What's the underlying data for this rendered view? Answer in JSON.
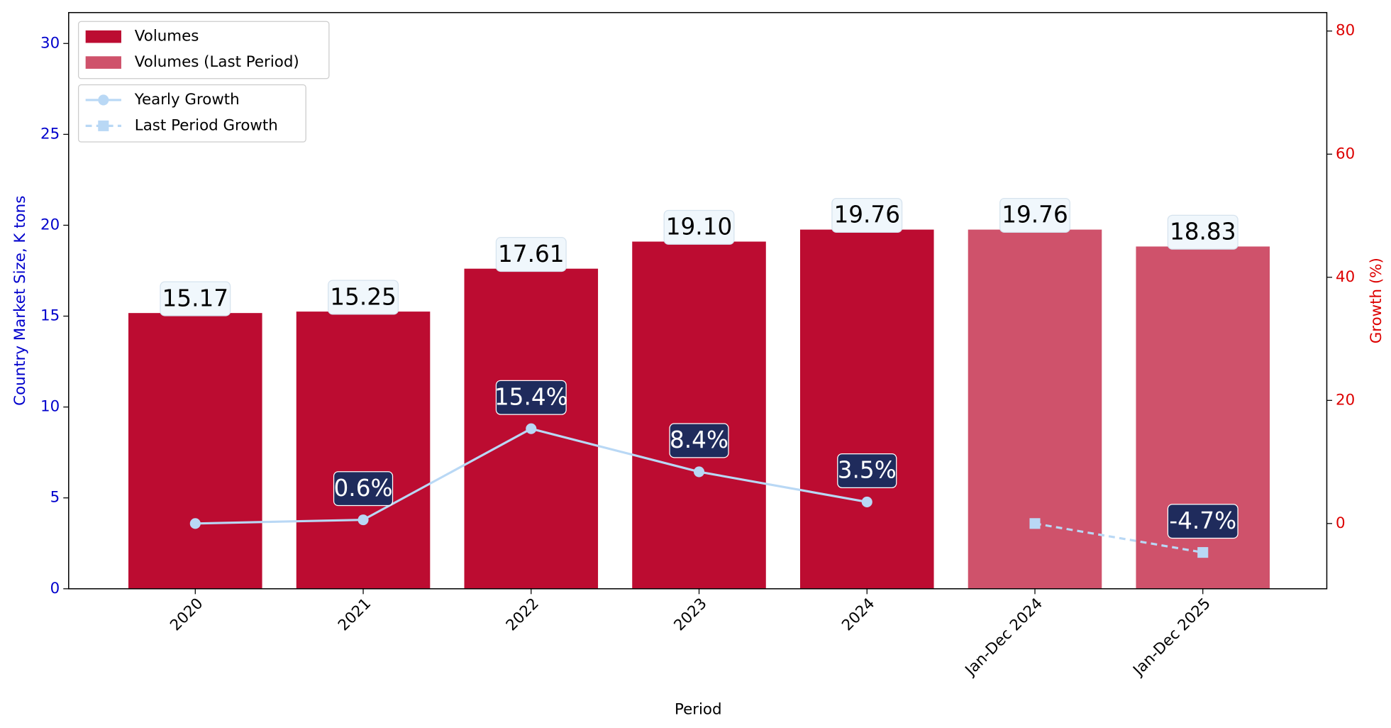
{
  "chart_data": {
    "type": "bar",
    "x_label": "Period",
    "y_label": "Country Market Size, K tons",
    "y2_label": "Growth (%)",
    "categories": [
      "2020",
      "2021",
      "2022",
      "2023",
      "2024",
      "Jan-Dec 2024",
      "Jan-Dec 2025"
    ],
    "series": [
      {
        "name": "Volumes",
        "color": "#bc0c31",
        "type": "bar",
        "values": [
          15.17,
          15.25,
          17.61,
          19.1,
          19.76,
          null,
          null
        ],
        "value_labels": [
          "15.17",
          "15.25",
          "17.61",
          "19.10",
          "19.76",
          null,
          null
        ]
      },
      {
        "name": "Volumes (Last Period)",
        "color": "#cf526b",
        "type": "bar",
        "values": [
          null,
          null,
          null,
          null,
          null,
          19.76,
          18.83
        ],
        "value_labels": [
          null,
          null,
          null,
          null,
          null,
          "19.76",
          "18.83"
        ]
      },
      {
        "name": "Yearly Growth",
        "color": "#b9d8f5",
        "type": "line",
        "axis": "y2",
        "marker": "circle",
        "dash": false,
        "values": [
          0,
          0.6,
          15.4,
          8.4,
          3.5,
          null,
          null
        ],
        "value_labels": [
          null,
          "0.6%",
          "15.4%",
          "8.4%",
          "3.5%",
          null,
          null
        ]
      },
      {
        "name": "Last Period Growth",
        "color": "#b9d8f5",
        "type": "line",
        "axis": "y2",
        "marker": "square",
        "dash": true,
        "values": [
          null,
          null,
          null,
          null,
          null,
          0,
          -4.7
        ],
        "value_labels": [
          null,
          null,
          null,
          null,
          null,
          null,
          "-4.7%"
        ]
      }
    ],
    "ylim": [
      0,
      31.7
    ],
    "yticks": [
      0,
      5,
      10,
      15,
      20,
      25,
      30
    ],
    "y2lim": [
      -10.6,
      83
    ],
    "y2ticks": [
      0,
      20,
      40,
      60,
      80
    ],
    "legend": "upper left",
    "grid": false
  }
}
